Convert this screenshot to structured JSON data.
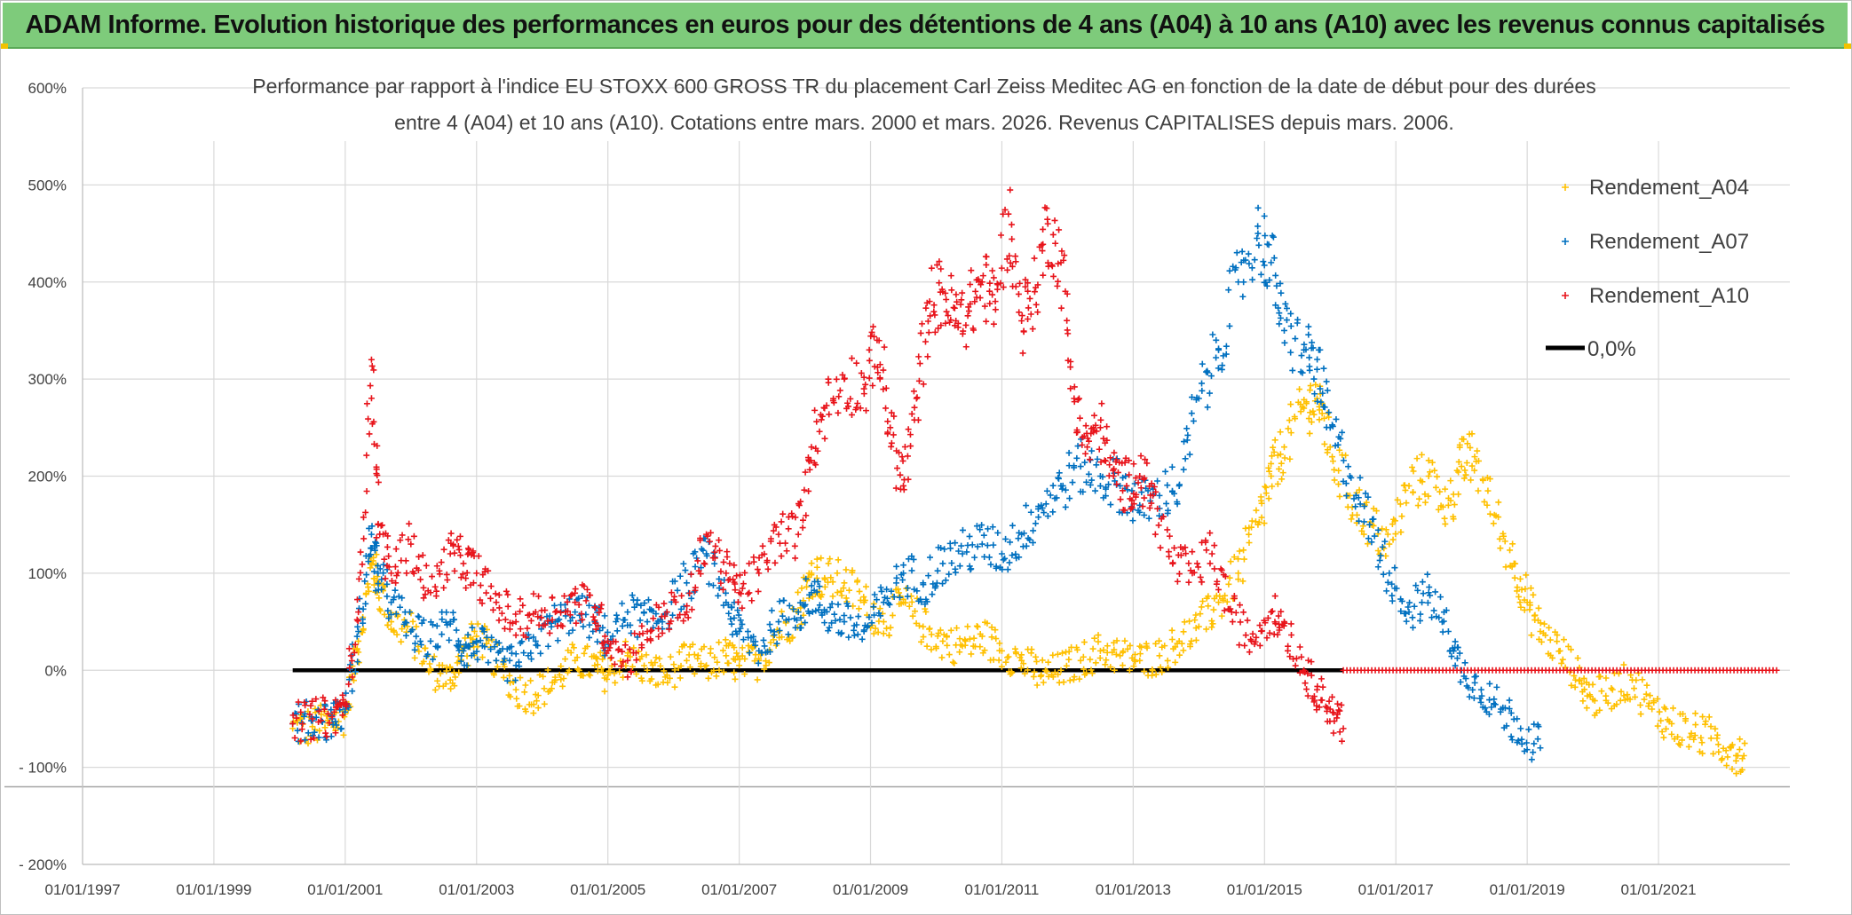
{
  "banner": {
    "title": "ADAM Informe. Evolution historique des performances en euros pour des détentions de 4 ans (A04) à 10 ans (A10) avec les revenus connus capitalisés"
  },
  "colors": {
    "banner_bg": "#7ecb7b",
    "A04": "#ffc000",
    "A07": "#0070c0",
    "A10": "#e8141b",
    "zero": "#000000"
  },
  "chart_data": {
    "type": "scatter",
    "title_lines": [
      "Performance par rapport à l'indice EU STOXX 600 GROSS TR  du placement Carl Zeiss Meditec AG en fonction de la date de début pour des durées",
      "entre 4 (A04) et 10 ans (A10). Cotations entre mars. 2000 et mars. 2026. Revenus CAPITALISES depuis mars. 2006."
    ],
    "xlabel": "",
    "ylabel": "",
    "xlim": [
      1997.0,
      2023.0
    ],
    "ylim": [
      -200,
      600
    ],
    "y_ticks": [
      {
        "value": 600,
        "label": "600%"
      },
      {
        "value": 500,
        "label": "500%"
      },
      {
        "value": 400,
        "label": "400%"
      },
      {
        "value": 300,
        "label": "300%"
      },
      {
        "value": 200,
        "label": "200%"
      },
      {
        "value": 100,
        "label": "100%"
      },
      {
        "value": 0,
        "label": "0%"
      },
      {
        "value": -100,
        "label": "- 100%"
      },
      {
        "value": -200,
        "label": "- 200%"
      }
    ],
    "x_ticks": [
      {
        "value": 1997,
        "label": "01/01/1997"
      },
      {
        "value": 1999,
        "label": "01/01/1999"
      },
      {
        "value": 2001,
        "label": "01/01/2001"
      },
      {
        "value": 2003,
        "label": "01/01/2003"
      },
      {
        "value": 2005,
        "label": "01/01/2005"
      },
      {
        "value": 2007,
        "label": "01/01/2007"
      },
      {
        "value": 2009,
        "label": "01/01/2009"
      },
      {
        "value": 2011,
        "label": "01/01/2011"
      },
      {
        "value": 2013,
        "label": "01/01/2013"
      },
      {
        "value": 2015,
        "label": "01/01/2015"
      },
      {
        "value": 2017,
        "label": "01/01/2017"
      },
      {
        "value": 2019,
        "label": "01/01/2019"
      },
      {
        "value": 2021,
        "label": "01/01/2021"
      }
    ],
    "grid": true,
    "legend_position": "top-right",
    "series": [
      {
        "name": "Rendement_A04",
        "marker": "plus",
        "x": [
          2000.2,
          2000.5,
          2000.8,
          2001.0,
          2001.2,
          2001.4,
          2001.5,
          2001.7,
          2002.0,
          2002.3,
          2002.6,
          2002.8,
          2003.0,
          2003.3,
          2003.6,
          2003.9,
          2004.2,
          2004.5,
          2004.8,
          2005.0,
          2005.3,
          2005.6,
          2005.9,
          2006.2,
          2006.5,
          2006.8,
          2007.0,
          2007.3,
          2007.6,
          2007.9,
          2008.1,
          2008.3,
          2008.6,
          2008.9,
          2009.2,
          2009.5,
          2009.8,
          2010.1,
          2010.4,
          2010.7,
          2011.0,
          2011.3,
          2011.6,
          2011.9,
          2012.2,
          2012.5,
          2012.8,
          2013.1,
          2013.4,
          2013.7,
          2014.0,
          2014.3,
          2014.6,
          2014.9,
          2015.1,
          2015.3,
          2015.6,
          2015.8,
          2016.0,
          2016.3,
          2016.6,
          2016.9,
          2017.2,
          2017.5,
          2017.8,
          2018.0,
          2018.2,
          2018.5,
          2018.8,
          2019.0,
          2019.2,
          2019.5,
          2019.8,
          2020.0,
          2020.3,
          2020.6,
          2020.9,
          2021.2,
          2021.5,
          2021.8,
          2022.1,
          2022.3
        ],
        "y": [
          -60,
          -58,
          -55,
          -45,
          30,
          110,
          90,
          50,
          40,
          0,
          -10,
          20,
          35,
          10,
          -20,
          -25,
          -10,
          10,
          5,
          -5,
          15,
          0,
          -5,
          10,
          5,
          15,
          5,
          10,
          40,
          60,
          100,
          95,
          90,
          70,
          50,
          70,
          45,
          30,
          25,
          35,
          20,
          10,
          -5,
          0,
          10,
          20,
          15,
          10,
          15,
          30,
          45,
          70,
          100,
          150,
          200,
          230,
          270,
          280,
          230,
          180,
          150,
          130,
          190,
          200,
          170,
          210,
          220,
          160,
          110,
          70,
          40,
          20,
          -10,
          -30,
          -20,
          -10,
          -40,
          -55,
          -65,
          -70,
          -80,
          -88
        ]
      },
      {
        "name": "Rendement_A07",
        "marker": "plus",
        "x": [
          2000.2,
          2000.5,
          2000.8,
          2001.0,
          2001.2,
          2001.4,
          2001.5,
          2001.7,
          2002.0,
          2002.3,
          2002.6,
          2002.8,
          2003.0,
          2003.3,
          2003.6,
          2003.9,
          2004.2,
          2004.5,
          2004.8,
          2005.0,
          2005.3,
          2005.6,
          2005.9,
          2006.2,
          2006.5,
          2006.8,
          2007.0,
          2007.3,
          2007.6,
          2007.9,
          2008.1,
          2008.3,
          2008.6,
          2008.9,
          2009.2,
          2009.5,
          2009.8,
          2010.1,
          2010.4,
          2010.7,
          2011.0,
          2011.3,
          2011.6,
          2011.9,
          2012.2,
          2012.5,
          2012.8,
          2013.1,
          2013.4,
          2013.7,
          2014.0,
          2014.3,
          2014.6,
          2014.9,
          2015.1,
          2015.3,
          2015.6,
          2015.8,
          2016.0,
          2016.3,
          2016.6,
          2016.9,
          2017.2,
          2017.5,
          2017.8,
          2018.0,
          2018.3,
          2018.6,
          2018.9,
          2019.2
        ],
        "y": [
          -55,
          -52,
          -50,
          -40,
          40,
          140,
          100,
          70,
          40,
          30,
          50,
          20,
          30,
          10,
          5,
          30,
          50,
          60,
          50,
          30,
          60,
          50,
          60,
          90,
          120,
          70,
          40,
          20,
          50,
          60,
          80,
          60,
          50,
          40,
          70,
          100,
          90,
          110,
          120,
          130,
          120,
          140,
          170,
          190,
          210,
          200,
          190,
          170,
          180,
          190,
          280,
          330,
          400,
          450,
          420,
          350,
          330,
          310,
          250,
          200,
          150,
          100,
          60,
          80,
          40,
          0,
          -20,
          -40,
          -60,
          -80
        ]
      },
      {
        "name": "Rendement_A10",
        "marker": "plus",
        "x": [
          2000.2,
          2000.5,
          2000.8,
          2001.0,
          2001.2,
          2001.4,
          2001.5,
          2001.7,
          2002.0,
          2002.3,
          2002.6,
          2002.8,
          2003.0,
          2003.3,
          2003.6,
          2003.9,
          2004.2,
          2004.5,
          2004.8,
          2005.0,
          2005.3,
          2005.6,
          2005.9,
          2006.2,
          2006.5,
          2006.8,
          2007.0,
          2007.3,
          2007.6,
          2007.9,
          2008.1,
          2008.3,
          2008.6,
          2008.9,
          2009.1,
          2009.3,
          2009.5,
          2009.7,
          2009.9,
          2010.1,
          2010.3,
          2010.5,
          2010.7,
          2010.9,
          2011.1,
          2011.3,
          2011.5,
          2011.7,
          2011.9,
          2012.1,
          2012.3,
          2012.5,
          2012.7,
          2012.9,
          2013.1,
          2013.3,
          2013.6,
          2013.9,
          2014.2,
          2014.5,
          2014.8,
          2015.1,
          2015.3,
          2015.6,
          2015.8,
          2016.0,
          2016.2
        ],
        "y": [
          -55,
          -50,
          -48,
          -35,
          60,
          320,
          150,
          100,
          130,
          80,
          120,
          110,
          100,
          70,
          50,
          60,
          60,
          70,
          65,
          30,
          10,
          40,
          60,
          60,
          140,
          100,
          80,
          100,
          140,
          140,
          230,
          270,
          300,
          290,
          340,
          250,
          190,
          280,
          380,
          390,
          360,
          370,
          400,
          380,
          470,
          360,
          390,
          460,
          420,
          280,
          230,
          250,
          200,
          190,
          200,
          180,
          110,
          100,
          120,
          60,
          30,
          60,
          50,
          0,
          -20,
          -40,
          -60
        ]
      },
      {
        "name": "0,0%",
        "marker": "line",
        "x": [
          2000.2,
          2016.2
        ],
        "y": [
          0,
          0
        ]
      },
      {
        "name": "0 (after end of data)",
        "marker": "plus",
        "legend": false,
        "x": [
          2016.2,
          2022.8
        ],
        "y": [
          0,
          0
        ]
      }
    ]
  }
}
